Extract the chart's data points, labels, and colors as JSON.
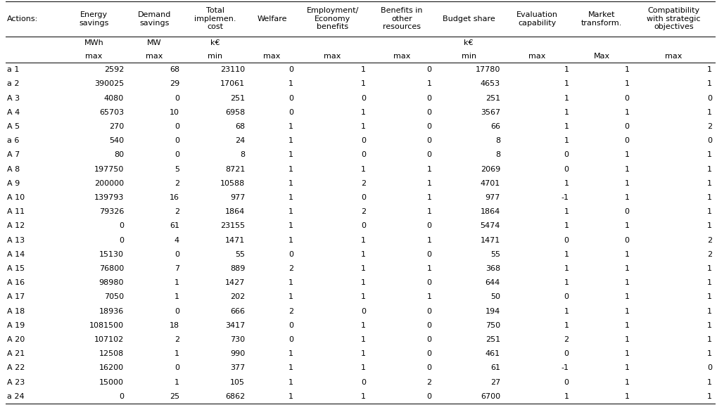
{
  "col_headers": [
    "Actions:",
    "Energy\nsavings",
    "Demand\nsavings",
    "Total\nimplemen.\ncost",
    "Welfare",
    "Employment/\nEconomy\nbenefits",
    "Benefits in\nother\nresources",
    "Budget share",
    "Evaluation\ncapability",
    "Market\ntransform.",
    "Compatibility\nwith strategic\nobjectives"
  ],
  "units_row": [
    "",
    "MWh",
    "MW",
    "k€",
    "",
    "",
    "",
    "k€",
    "",
    "",
    ""
  ],
  "opt_row": [
    "",
    "max",
    "max",
    "min",
    "max",
    "max",
    "max",
    "min",
    "max",
    "Max",
    "max"
  ],
  "rows": [
    [
      "a 1",
      2592,
      68,
      23110,
      0,
      1,
      0,
      17780,
      1,
      1,
      1
    ],
    [
      "a 2",
      390025,
      29,
      17061,
      1,
      1,
      1,
      4653,
      1,
      1,
      1
    ],
    [
      "A 3",
      4080,
      0,
      251,
      0,
      0,
      0,
      251,
      1,
      0,
      0
    ],
    [
      "A 4",
      65703,
      10,
      6958,
      0,
      1,
      0,
      3567,
      1,
      1,
      1
    ],
    [
      "A 5",
      270,
      0,
      68,
      1,
      1,
      0,
      66,
      1,
      0,
      2
    ],
    [
      "a 6",
      540,
      0,
      24,
      1,
      0,
      0,
      8,
      1,
      0,
      0
    ],
    [
      "A 7",
      80,
      0,
      8,
      1,
      0,
      0,
      8,
      0,
      1,
      1
    ],
    [
      "A 8",
      197750,
      5,
      8721,
      1,
      1,
      1,
      2069,
      0,
      1,
      1
    ],
    [
      "A 9",
      200000,
      2,
      10588,
      1,
      2,
      1,
      4701,
      1,
      1,
      1
    ],
    [
      "A 10",
      139793,
      16,
      977,
      1,
      0,
      1,
      977,
      -1,
      1,
      1
    ],
    [
      "A 11",
      79326,
      2,
      1864,
      1,
      2,
      1,
      1864,
      1,
      0,
      1
    ],
    [
      "A 12",
      0,
      61,
      23155,
      1,
      0,
      0,
      5474,
      1,
      1,
      1
    ],
    [
      "A 13",
      0,
      4,
      1471,
      1,
      1,
      1,
      1471,
      0,
      0,
      2
    ],
    [
      "A 14",
      15130,
      0,
      55,
      0,
      1,
      0,
      55,
      1,
      1,
      2
    ],
    [
      "A 15",
      76800,
      7,
      889,
      2,
      1,
      1,
      368,
      1,
      1,
      1
    ],
    [
      "A 16",
      98980,
      1,
      1427,
      1,
      1,
      0,
      644,
      1,
      1,
      1
    ],
    [
      "A 17",
      7050,
      1,
      202,
      1,
      1,
      1,
      50,
      0,
      1,
      1
    ],
    [
      "A 18",
      18936,
      0,
      666,
      2,
      0,
      0,
      194,
      1,
      1,
      1
    ],
    [
      "A 19",
      1081500,
      18,
      3417,
      0,
      1,
      0,
      750,
      1,
      1,
      1
    ],
    [
      "A 20",
      107102,
      2,
      730,
      0,
      1,
      0,
      251,
      2,
      1,
      1
    ],
    [
      "A 21",
      12508,
      1,
      990,
      1,
      1,
      0,
      461,
      0,
      1,
      1
    ],
    [
      "A 22",
      16200,
      0,
      377,
      1,
      1,
      0,
      61,
      -1,
      1,
      0
    ],
    [
      "A 23",
      15000,
      1,
      105,
      1,
      0,
      2,
      27,
      0,
      1,
      1
    ],
    [
      "a 24",
      0,
      25,
      6862,
      1,
      1,
      0,
      6700,
      1,
      1,
      1
    ]
  ],
  "col_widths_pts": [
    55,
    65,
    55,
    65,
    48,
    72,
    65,
    68,
    68,
    60,
    82
  ],
  "header_fontsize": 8.0,
  "cell_fontsize": 8.0,
  "line_color": "#000000",
  "bg_color": "#ffffff"
}
